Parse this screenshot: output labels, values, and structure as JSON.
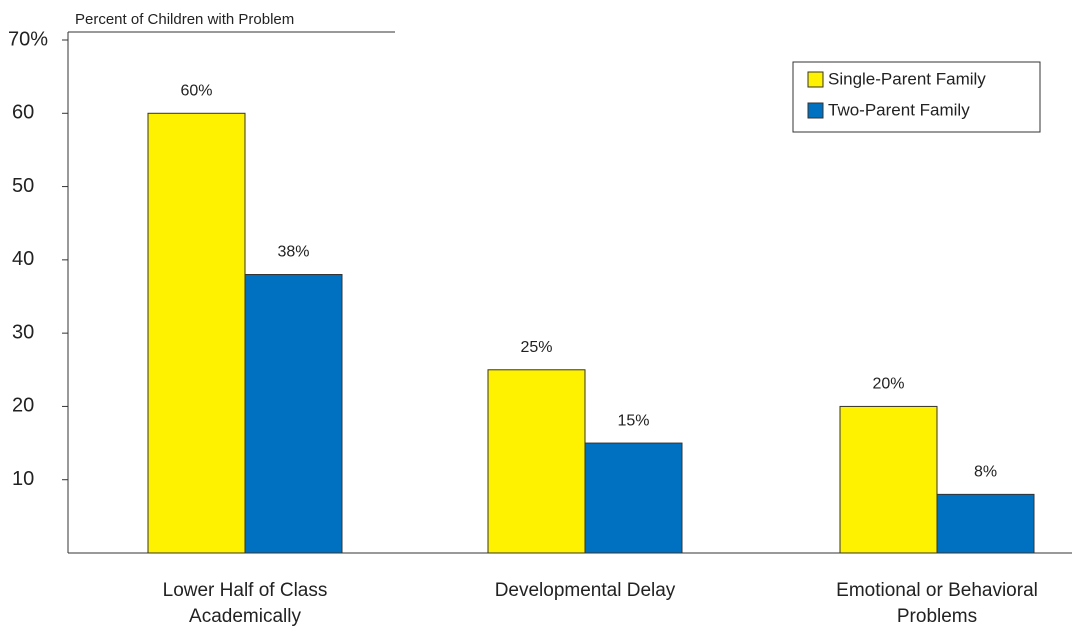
{
  "chart_data": {
    "type": "bar",
    "y_axis_label": "Percent of Children with Problem",
    "categories": [
      "Lower Half of Class Academically",
      "Developmental Delay",
      "Emotional or Behavioral Problems"
    ],
    "series": [
      {
        "name": "Single-Parent Family",
        "color": "#fff200",
        "values": [
          60,
          25,
          20
        ],
        "value_labels": [
          "60%",
          "25%",
          "20%"
        ]
      },
      {
        "name": "Two-Parent Family",
        "color": "#0070c0",
        "values": [
          38,
          15,
          8
        ],
        "value_labels": [
          "38%",
          "15%",
          "8%"
        ]
      }
    ],
    "ylim": [
      0,
      70
    ],
    "yticks": [
      10,
      20,
      30,
      40,
      50,
      60,
      {
        "value": 70,
        "label": "70%"
      }
    ],
    "legend": "upper right"
  }
}
